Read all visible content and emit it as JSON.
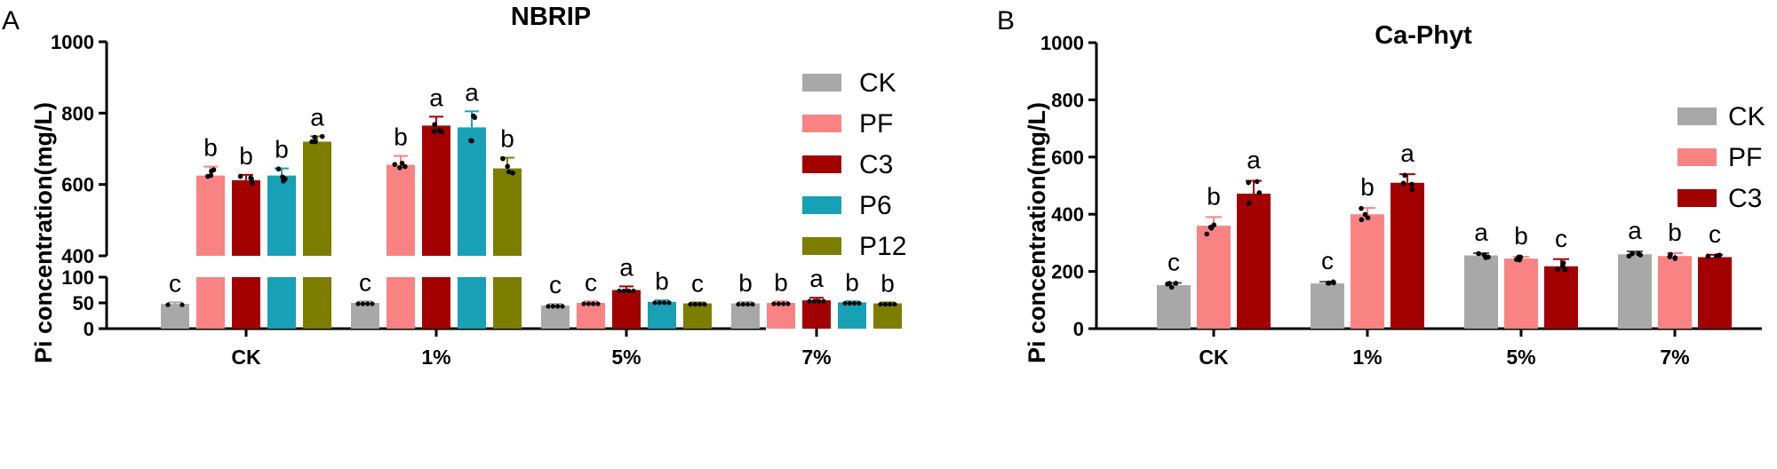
{
  "chart_data": [
    {
      "panel": "A",
      "type": "bar",
      "title": "NBRIP",
      "ylabel": "Pi concentration(mg/L)",
      "categories": [
        "CK",
        "1%",
        "5%",
        "7%"
      ],
      "y_axis_break": {
        "lower_range": [
          0,
          100
        ],
        "upper_range": [
          400,
          1000
        ]
      },
      "lower_ticks": [
        "0",
        "50",
        "100"
      ],
      "upper_ticks": [
        "400",
        "600",
        "800",
        "1000"
      ],
      "legend_position": "right",
      "series": [
        {
          "name": "CK",
          "color": "#a8a8a8",
          "values": [
            48,
            50,
            45,
            49
          ],
          "errors": [
            3,
            3,
            3,
            3
          ],
          "letters": [
            "c",
            "c",
            "c",
            "b"
          ]
        },
        {
          "name": "PF",
          "color": "#f98383",
          "values": [
            625,
            655,
            50,
            50
          ],
          "errors": [
            25,
            25,
            3,
            3
          ],
          "letters": [
            "b",
            "b",
            "c",
            "b"
          ]
        },
        {
          "name": "C3",
          "color": "#a30000",
          "values": [
            612,
            765,
            75,
            55
          ],
          "errors": [
            15,
            25,
            7,
            5
          ],
          "letters": [
            "b",
            "a",
            "a",
            "a"
          ]
        },
        {
          "name": "P6",
          "color": "#17a0b6",
          "values": [
            625,
            760,
            52,
            51
          ],
          "errors": [
            20,
            45,
            3,
            2
          ],
          "letters": [
            "b",
            "a",
            "b",
            "b"
          ]
        },
        {
          "name": "P12",
          "color": "#7d7d00",
          "values": [
            720,
            645,
            49,
            49
          ],
          "errors": [
            15,
            30,
            2,
            2
          ],
          "letters": [
            "a",
            "b",
            "c",
            "b"
          ]
        }
      ]
    },
    {
      "panel": "B",
      "type": "bar",
      "title": "Ca-Phyt",
      "ylabel": "Pi concentration(mg/L)",
      "categories": [
        "CK",
        "1%",
        "5%",
        "7%"
      ],
      "ylim": [
        0,
        1000
      ],
      "ticks": [
        "0",
        "200",
        "400",
        "600",
        "800",
        "1000"
      ],
      "legend_position": "top-right",
      "series": [
        {
          "name": "CK",
          "color": "#a8a8a8",
          "values": [
            152,
            158,
            256,
            260
          ],
          "errors": [
            8,
            6,
            8,
            10
          ],
          "letters": [
            "c",
            "c",
            "a",
            "a"
          ]
        },
        {
          "name": "PF",
          "color": "#f98383",
          "values": [
            360,
            400,
            245,
            254
          ],
          "errors": [
            30,
            22,
            6,
            10
          ],
          "letters": [
            "b",
            "b",
            "b",
            "b"
          ]
        },
        {
          "name": "C3",
          "color": "#a30000",
          "values": [
            472,
            510,
            218,
            250
          ],
          "errors": [
            45,
            30,
            25,
            8
          ],
          "letters": [
            "a",
            "a",
            "c",
            "c"
          ]
        }
      ]
    }
  ]
}
